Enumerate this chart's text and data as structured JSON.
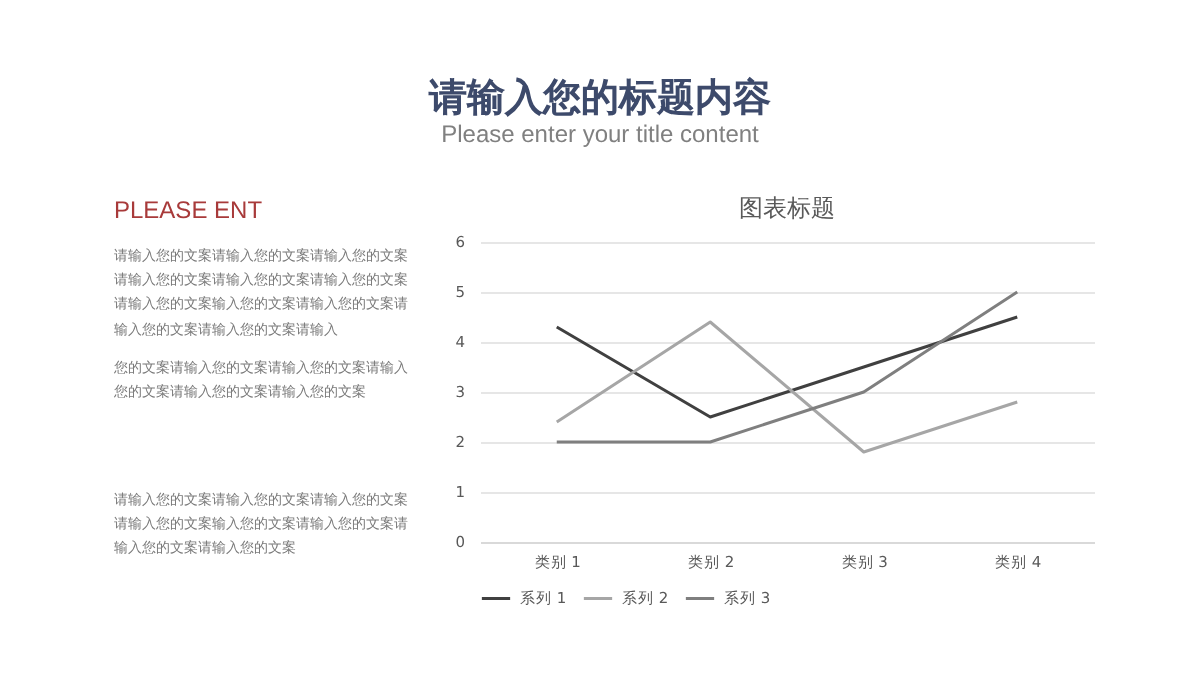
{
  "chart_data": {
    "type": "line",
    "title": "图表标题",
    "categories": [
      "类别 1",
      "类别 2",
      "类别 3",
      "类别 4"
    ],
    "series": [
      {
        "name": "系列 1",
        "color": "#404040",
        "values": [
          4.3,
          2.5,
          3.5,
          4.5
        ]
      },
      {
        "name": "系列 2",
        "color": "#a6a6a6",
        "values": [
          2.4,
          4.4,
          1.8,
          2.8
        ]
      },
      {
        "name": "系列 3",
        "color": "#7f7f7f",
        "values": [
          2,
          2,
          3,
          5
        ]
      }
    ],
    "ylim": [
      0,
      6
    ],
    "yticks": [
      0,
      1,
      2,
      3,
      4,
      5,
      6
    ],
    "grid": "y",
    "legend": "bottom",
    "marker": "none",
    "line_style": "solid",
    "annotations": [
      "请输入您的标题内容",
      "Please enter your title content",
      "PLEASE ENT",
      "请输入您的文案请输入您的文案请输入您的文案请输入您的文案请输入您的文案请输入您的文案请输入您的文案输入您的文案请输入您的文案请输入您的文案请输入您的文案请输入",
      "您的文案请输入您的文案请输入您的文案请输入您的文案请输入您的文案请输入您的文案",
      "请输入您的文案请输入您的文案请输入您的文案请输入您的文案输入您的文案请输入您的文案请输入您的文案请输入您的文案"
    ]
  }
}
